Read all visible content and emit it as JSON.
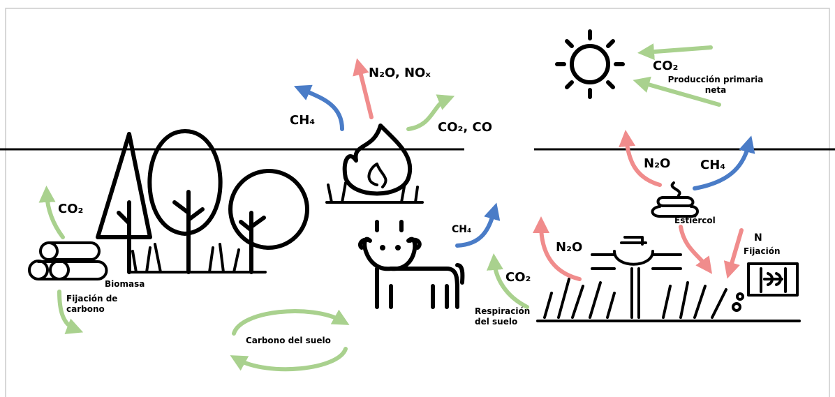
{
  "fire": {
    "ch4": "CH₄",
    "n2o_nox": "N₂O, NOₓ",
    "co2_co": "CO₂, CO"
  },
  "sun": {
    "co2": "CO₂",
    "label": [
      "Producción primaria",
      "neta"
    ]
  },
  "manure": {
    "n2o": "N₂O",
    "ch4": "CH₄",
    "label": "Estiércol"
  },
  "fixation": {
    "n": "N",
    "label": "Fijación"
  },
  "biomass": {
    "co2": "CO₂",
    "label": "Biomasa",
    "fixation": [
      "Fijación de",
      "carbono"
    ]
  },
  "cow": {
    "ch4": "CH₄"
  },
  "crop": {
    "n2o": "N₂O",
    "co2": "CO₂",
    "respiration": [
      "Respiración",
      "del suelo"
    ]
  },
  "soil": {
    "label": "Carbono del suelo"
  }
}
